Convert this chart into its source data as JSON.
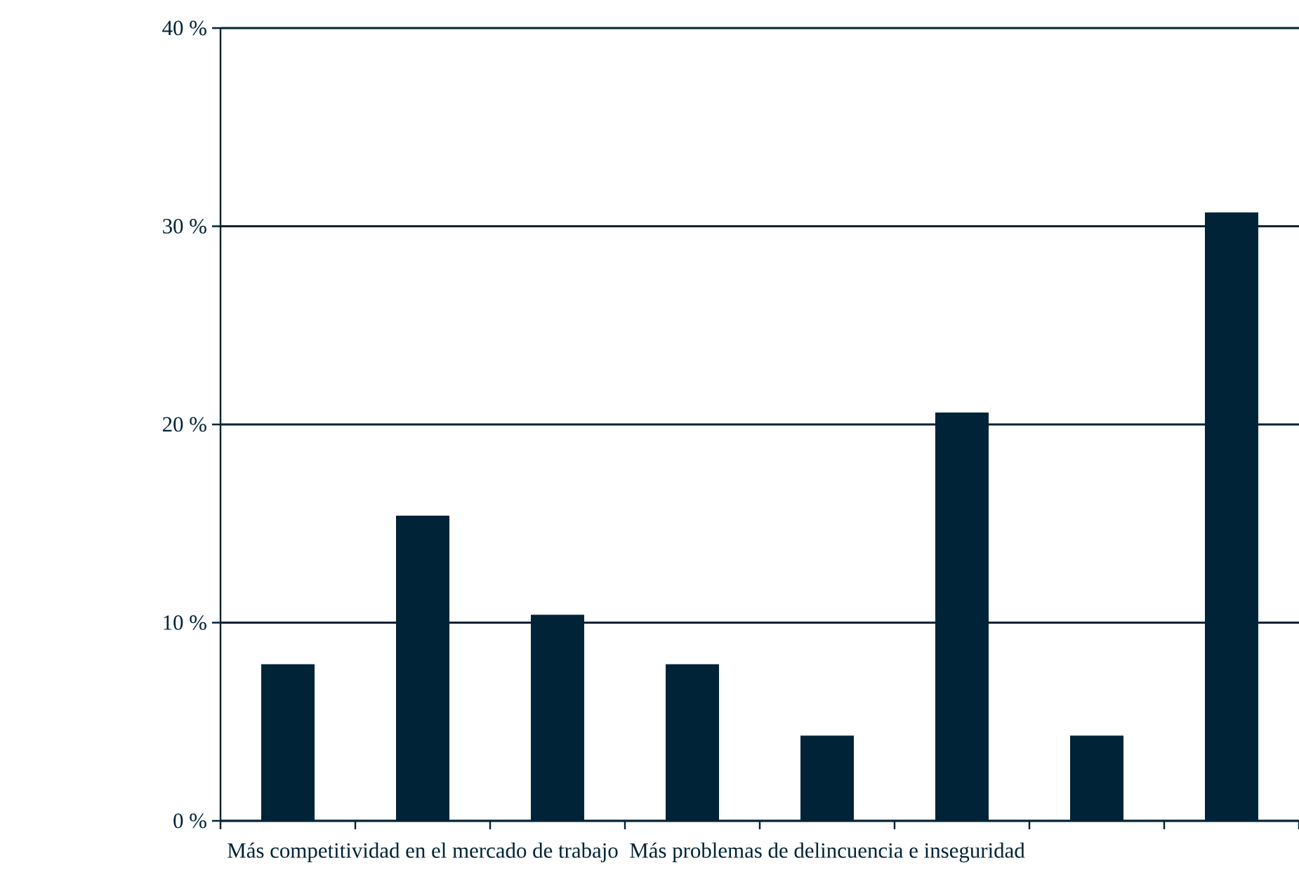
{
  "chart_data": {
    "type": "bar",
    "categories": [
      null,
      "Más competitividad en el mercado de trabajo",
      null,
      null,
      "Más problemas de delincuencia e inseguridad",
      null,
      null,
      null
    ],
    "values": [
      7.9,
      15.4,
      10.4,
      7.9,
      4.3,
      20.6,
      4.3,
      30.7
    ],
    "color": "#002337",
    "ylim": [
      0,
      40
    ],
    "yticks": [
      {
        "value": 0,
        "label": "0 %"
      },
      {
        "value": 10,
        "label": "10 %"
      },
      {
        "value": 20,
        "label": "20 %"
      },
      {
        "value": 30,
        "label": "30 %"
      },
      {
        "value": 40,
        "label": "40 %"
      }
    ],
    "grid": "y"
  }
}
